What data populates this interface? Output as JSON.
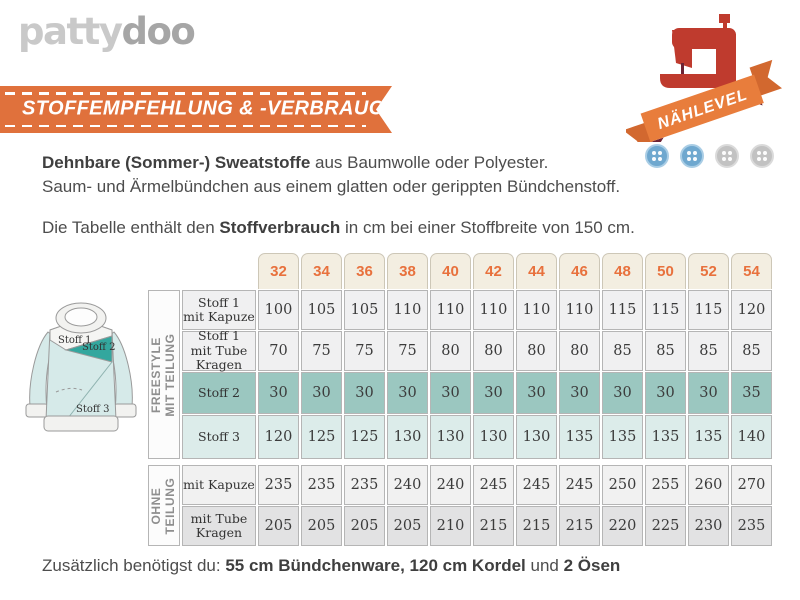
{
  "logo": {
    "part1": "patty",
    "part2": "doo"
  },
  "banner": {
    "title": "STOFFEMPFEHLUNG & -VERBRAUCH"
  },
  "badge": {
    "ribbon_label": "NÄHLEVEL",
    "level_filled": 2,
    "level_total": 4
  },
  "intro": {
    "line1_bold": "Dehnbare (Sommer-) Sweatstoffe",
    "line1_rest": " aus Baumwolle oder Polyester.",
    "line2": "Saum- und Ärmelbündchen aus einem glatten oder gerippten Bündchenstoff.",
    "line3_pre": "Die Tabelle enthält den ",
    "line3_bold": "Stoffverbrauch",
    "line3_post": " in cm bei einer Stoffbreite von 150 cm."
  },
  "diagram": {
    "label1": "Stoff 1",
    "label2": "Stoff 2",
    "label3": "Stoff 3"
  },
  "table": {
    "sizes": [
      32,
      34,
      36,
      38,
      40,
      42,
      44,
      46,
      48,
      50,
      52,
      54
    ],
    "sections": [
      {
        "label": "FREESTYLE\nMIT TEILUNG",
        "rows": [
          {
            "label": "Stoff 1\nmit Kapuze",
            "bg": "#f0f0f1",
            "values": [
              100,
              105,
              105,
              110,
              110,
              110,
              110,
              110,
              115,
              115,
              115,
              120
            ]
          },
          {
            "label": "Stoff 1\nmit Tube\nKragen",
            "bg": "#f0f0f1",
            "values": [
              70,
              75,
              75,
              75,
              80,
              80,
              80,
              80,
              85,
              85,
              85,
              85
            ]
          },
          {
            "label": "Stoff 2",
            "bg": "#9bc7c0",
            "values": [
              30,
              30,
              30,
              30,
              30,
              30,
              30,
              30,
              30,
              30,
              30,
              35
            ]
          },
          {
            "label": "Stoff 3",
            "bg": "#dcecea",
            "values": [
              120,
              125,
              125,
              130,
              130,
              130,
              130,
              135,
              135,
              135,
              135,
              140
            ]
          }
        ]
      },
      {
        "label": "OHNE\nTEILUNG",
        "rows": [
          {
            "label": "mit Kapuze",
            "bg": "#f1f1f1",
            "values": [
              235,
              235,
              235,
              240,
              240,
              245,
              245,
              245,
              250,
              255,
              260,
              270
            ]
          },
          {
            "label": "mit Tube\nKragen",
            "bg": "#e2e2e3",
            "values": [
              205,
              205,
              205,
              205,
              210,
              215,
              215,
              215,
              220,
              225,
              230,
              235
            ]
          }
        ]
      }
    ]
  },
  "footer": {
    "pre": "Zusätzlich benötigst du: ",
    "bold1": "55 cm Bündchenware, 120 cm Kordel",
    "mid": " und ",
    "bold2": "2 Ösen"
  },
  "colors": {
    "banner_orange": "#e0713c",
    "size_header_text": "#e8713d",
    "size_header_bg": "#f3eee1",
    "teal_row": "#9bc7c0",
    "teal_row_light": "#dcecea",
    "teal_fabric": "#33a79e",
    "body_fabric": "#d6eae9",
    "machine_red": "#bf3b2e",
    "ribbon_orange": "#e87d3c",
    "ribbon_fold": "#6d2334",
    "level_blue": "#6fa8cf",
    "level_gray": "#c2c2c2"
  }
}
